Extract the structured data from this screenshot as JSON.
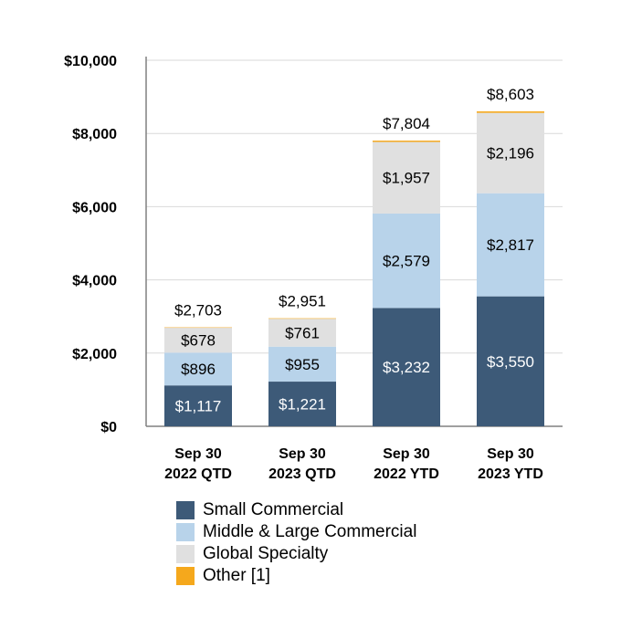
{
  "chart_data": {
    "type": "bar",
    "stacked": true,
    "categories": [
      [
        "Sep 30",
        "2022 QTD"
      ],
      [
        "Sep 30",
        "2023 QTD"
      ],
      [
        "Sep 30",
        "2022 YTD"
      ],
      [
        "Sep 30",
        "2023 YTD"
      ]
    ],
    "series": [
      {
        "name": "Small Commercial",
        "color": "#3d5a78",
        "label_color": "#ffffff",
        "values": [
          1117,
          1221,
          3232,
          3550
        ],
        "labels": [
          "$1,117",
          "$1,221",
          "$3,232",
          "$3,550"
        ]
      },
      {
        "name": "Middle & Large Commercial",
        "color": "#b8d3ea",
        "label_color": "#000000",
        "values": [
          896,
          955,
          2579,
          2817
        ],
        "labels": [
          "$896",
          "$955",
          "$2,579",
          "$2,817"
        ]
      },
      {
        "name": "Global Specialty",
        "color": "#e0e0e0",
        "label_color": "#000000",
        "values": [
          678,
          761,
          1957,
          2196
        ],
        "labels": [
          "$678",
          "$761",
          "$1,957",
          "$2,196"
        ]
      },
      {
        "name": "Other [1]",
        "color": "#f5a81c",
        "label_color": "#000000",
        "values": [
          12,
          14,
          36,
          40
        ],
        "labels": [
          "",
          "",
          "",
          ""
        ]
      }
    ],
    "totals": [
      "$2,703",
      "$2,951",
      "$7,804",
      "$8,603"
    ],
    "total_values": [
      2703,
      2951,
      7804,
      8603
    ],
    "yticks": [
      {
        "value": 0,
        "label": "$0"
      },
      {
        "value": 2000,
        "label": "$2,000"
      },
      {
        "value": 4000,
        "label": "$4,000"
      },
      {
        "value": 6000,
        "label": "$6,000"
      },
      {
        "value": 8000,
        "label": "$8,000"
      },
      {
        "value": 10000,
        "label": "$10,000"
      }
    ],
    "ylim": [
      0,
      10000
    ],
    "grid": true,
    "legend_position": "bottom",
    "title": "",
    "xlabel": "",
    "ylabel": ""
  }
}
